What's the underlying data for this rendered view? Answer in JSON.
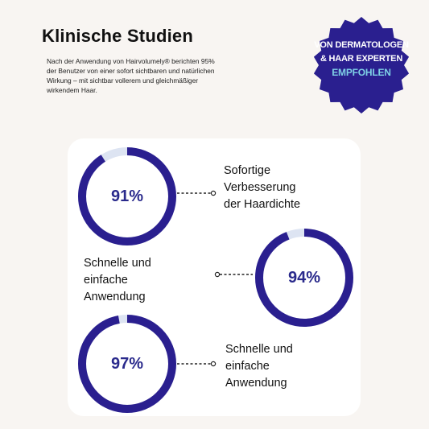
{
  "header": {
    "title": "Klinische Studien",
    "intro": "Nach der Anwendung von Hairvolumely® berichten 95% der Benutzer von einer sofort sichtbaren und natürlichen Wirkung – mit sichtbar vollerem und gleichmäßiger wirkendem Haar."
  },
  "badge": {
    "line1": "VON DERMATOLOGEN",
    "line2": "& HAAR EXPERTEN",
    "line3": "EMPFOHLEN",
    "color": "#2a1f8f",
    "accent_color": "#7fd0e6"
  },
  "stats": [
    {
      "value": "91%",
      "percent": 91,
      "label_lines": [
        "Sofortige",
        "Verbesserung",
        "der Haardichte"
      ]
    },
    {
      "value": "94%",
      "percent": 94,
      "label_lines": [
        "Schnelle und",
        "einfache",
        "Anwendung"
      ]
    },
    {
      "value": "97%",
      "percent": 97,
      "label_lines": [
        "Schnelle und",
        "einfache",
        "Anwendung"
      ]
    }
  ],
  "colors": {
    "ring": "#2a1f8f",
    "ring_track": "#dde4f2",
    "value_text": "#2a2a8c",
    "background": "#f8f5f2",
    "card": "#ffffff"
  }
}
